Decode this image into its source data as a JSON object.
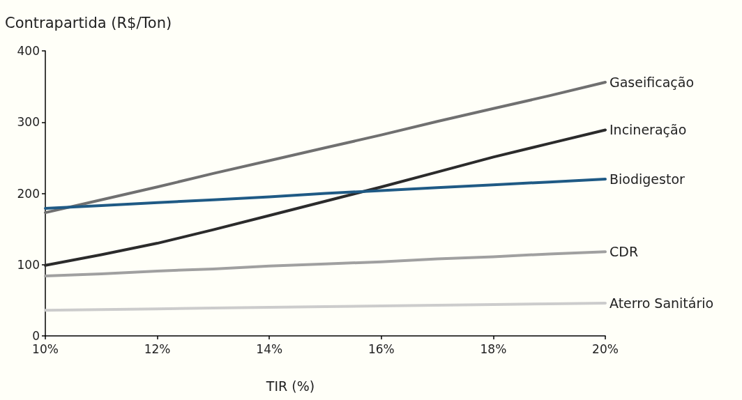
{
  "chart_data": {
    "type": "line",
    "xlabel": "TIR (%)",
    "ylabel": "Contrapartida (R$/Ton)",
    "x": [
      10,
      11,
      12,
      13,
      14,
      15,
      16,
      17,
      18,
      19,
      20
    ],
    "xlim": [
      10,
      20
    ],
    "xticks": [
      {
        "value": 10,
        "label": "10%"
      },
      {
        "value": 12,
        "label": "12%"
      },
      {
        "value": 14,
        "label": "14%"
      },
      {
        "value": 16,
        "label": "16%"
      },
      {
        "value": 18,
        "label": "18%"
      },
      {
        "value": 20,
        "label": "20%"
      }
    ],
    "ylim": [
      0,
      400
    ],
    "yticks": [
      0,
      100,
      200,
      300,
      400
    ],
    "grid": false,
    "legend": false,
    "marker": "none",
    "line_style": "solid",
    "series": [
      {
        "name": "Gaseificação",
        "color": "#707070",
        "values": [
          173,
          191,
          209,
          228,
          246,
          264,
          282,
          301,
          319,
          337,
          356
        ]
      },
      {
        "name": "Incineração",
        "color": "#2b2b2b",
        "values": [
          99,
          114,
          130,
          149,
          169,
          189,
          209,
          230,
          251,
          270,
          289
        ]
      },
      {
        "name": "Biodigestor",
        "color": "#1f5a85",
        "values": [
          179,
          183,
          187,
          191,
          195,
          200,
          204,
          208,
          212,
          216,
          220
        ]
      },
      {
        "name": "CDR",
        "color": "#a0a0a0",
        "values": [
          84,
          87,
          91,
          94,
          98,
          101,
          104,
          108,
          111,
          115,
          118
        ]
      },
      {
        "name": "Aterro Sanitário",
        "color": "#cccccc",
        "values": [
          36,
          37,
          38,
          39,
          40,
          41,
          42,
          43,
          44,
          45,
          46
        ]
      }
    ]
  }
}
